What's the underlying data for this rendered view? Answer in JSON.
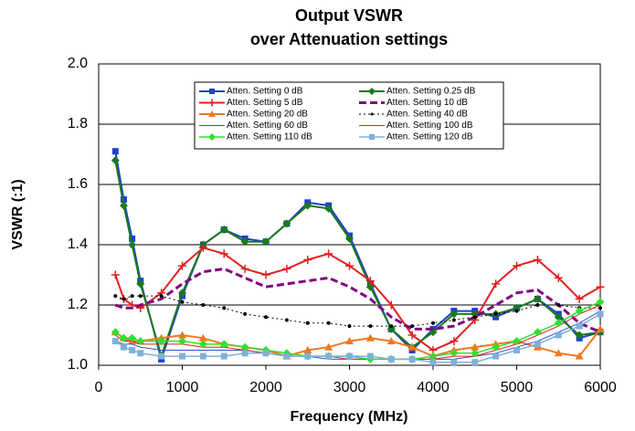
{
  "chart_data": {
    "type": "line",
    "title": "Output VSWR",
    "subtitle": "over Attenuation settings",
    "x_label": "Frequency (MHz)",
    "y_label": "VSWR (:1)",
    "x": [
      200,
      300,
      400,
      500,
      750,
      1000,
      1250,
      1500,
      1750,
      2000,
      2250,
      2500,
      2750,
      3000,
      3250,
      3500,
      3750,
      4000,
      4250,
      4500,
      4750,
      5000,
      5250,
      5500,
      5750,
      6000
    ],
    "xlim": [
      0,
      6000
    ],
    "xticks": [
      0,
      1000,
      2000,
      3000,
      4000,
      5000,
      6000
    ],
    "ylim": [
      1,
      2
    ],
    "yticks": [
      {
        "value": 1,
        "label": "1.0"
      },
      1.2,
      1.4,
      1.6,
      1.8,
      {
        "value": 2,
        "label": "2.0"
      }
    ],
    "grid": true,
    "series": [
      {
        "name": "Atten. Setting 0 dB",
        "color": "#1f3fd0",
        "marker": "square",
        "dash": "solid",
        "width": 2,
        "values": [
          1.71,
          1.55,
          1.42,
          1.28,
          1.02,
          1.23,
          1.4,
          1.45,
          1.42,
          1.41,
          1.47,
          1.54,
          1.53,
          1.43,
          1.27,
          1.12,
          1.05,
          1.12,
          1.18,
          1.18,
          1.16,
          1.19,
          1.22,
          1.17,
          1.09,
          1.11
        ]
      },
      {
        "name": "Atten. Setting 0.25 dB",
        "color": "#1a7a1a",
        "marker": "diamond",
        "dash": "solid",
        "width": 2,
        "values": [
          1.68,
          1.53,
          1.4,
          1.27,
          1.03,
          1.24,
          1.4,
          1.45,
          1.41,
          1.41,
          1.47,
          1.53,
          1.52,
          1.42,
          1.26,
          1.12,
          1.06,
          1.11,
          1.17,
          1.17,
          1.17,
          1.19,
          1.22,
          1.16,
          1.1,
          1.11
        ]
      },
      {
        "name": "Atten. Setting 5 dB",
        "color": "#e02020",
        "marker": "plus",
        "dash": "solid",
        "width": 2,
        "values": [
          1.3,
          1.22,
          1.2,
          1.19,
          1.24,
          1.33,
          1.39,
          1.37,
          1.32,
          1.3,
          1.32,
          1.35,
          1.37,
          1.33,
          1.28,
          1.2,
          1.1,
          1.05,
          1.08,
          1.15,
          1.27,
          1.33,
          1.35,
          1.29,
          1.22,
          1.26
        ]
      },
      {
        "name": "Atten. Setting 10 dB",
        "color": "#800080",
        "marker": "none",
        "dash": "dashed",
        "width": 3,
        "values": [
          1.2,
          1.19,
          1.19,
          1.2,
          1.22,
          1.27,
          1.31,
          1.32,
          1.29,
          1.26,
          1.27,
          1.28,
          1.29,
          1.26,
          1.22,
          1.16,
          1.12,
          1.12,
          1.13,
          1.16,
          1.2,
          1.24,
          1.25,
          1.2,
          1.14,
          1.11
        ]
      },
      {
        "name": "Atten. Setting 20 dB",
        "color": "#f07820",
        "marker": "triangle",
        "dash": "solid",
        "width": 2,
        "values": [
          1.11,
          1.09,
          1.08,
          1.08,
          1.09,
          1.1,
          1.09,
          1.07,
          1.06,
          1.05,
          1.03,
          1.05,
          1.06,
          1.08,
          1.09,
          1.08,
          1.06,
          1.03,
          1.05,
          1.06,
          1.07,
          1.08,
          1.06,
          1.04,
          1.03,
          1.12
        ]
      },
      {
        "name": "Atten. Setting 40 dB",
        "color": "#000000",
        "marker": "circle",
        "dash": "dotted",
        "width": 1,
        "values": [
          1.23,
          1.22,
          1.23,
          1.23,
          1.23,
          1.21,
          1.2,
          1.19,
          1.17,
          1.16,
          1.15,
          1.14,
          1.14,
          1.13,
          1.13,
          1.13,
          1.13,
          1.14,
          1.15,
          1.16,
          1.17,
          1.18,
          1.2,
          1.2,
          1.19,
          1.19
        ]
      },
      {
        "name": "Atten. Setting 60 dB",
        "color": "#3050d0",
        "marker": "none",
        "dash": "solid",
        "width": 1,
        "values": [
          1.08,
          1.07,
          1.07,
          1.06,
          1.05,
          1.05,
          1.05,
          1.05,
          1.05,
          1.04,
          1.03,
          1.03,
          1.02,
          1.02,
          1.02,
          1.02,
          1.02,
          1.02,
          1.02,
          1.03,
          1.04,
          1.06,
          1.08,
          1.11,
          1.14,
          1.18
        ]
      },
      {
        "name": "Atten. Setting 100 dB",
        "color": "#e02020",
        "marker": "none",
        "dash": "solid",
        "width": 1,
        "values": [
          1.1,
          1.08,
          1.08,
          1.07,
          1.07,
          1.07,
          1.06,
          1.06,
          1.05,
          1.04,
          1.03,
          1.03,
          1.03,
          1.02,
          1.02,
          1.02,
          1.02,
          1.02,
          1.03,
          1.03,
          1.05,
          1.07,
          1.1,
          1.13,
          1.17,
          1.2
        ]
      },
      {
        "name": "Atten. Setting 110 dB",
        "color": "#30e030",
        "marker": "diamond",
        "dash": "solid",
        "width": 1.5,
        "values": [
          1.11,
          1.09,
          1.09,
          1.08,
          1.08,
          1.08,
          1.07,
          1.07,
          1.06,
          1.05,
          1.04,
          1.03,
          1.03,
          1.03,
          1.02,
          1.02,
          1.02,
          1.03,
          1.04,
          1.04,
          1.06,
          1.08,
          1.11,
          1.14,
          1.18,
          1.21
        ]
      },
      {
        "name": "Atten. Setting 120 dB",
        "color": "#80b0d8",
        "marker": "square",
        "dash": "solid",
        "width": 1.5,
        "values": [
          1.08,
          1.06,
          1.05,
          1.04,
          1.03,
          1.03,
          1.03,
          1.03,
          1.04,
          1.04,
          1.03,
          1.03,
          1.03,
          1.03,
          1.03,
          1.02,
          1.02,
          1.01,
          1.01,
          1.01,
          1.03,
          1.05,
          1.07,
          1.1,
          1.13,
          1.17
        ]
      }
    ]
  }
}
